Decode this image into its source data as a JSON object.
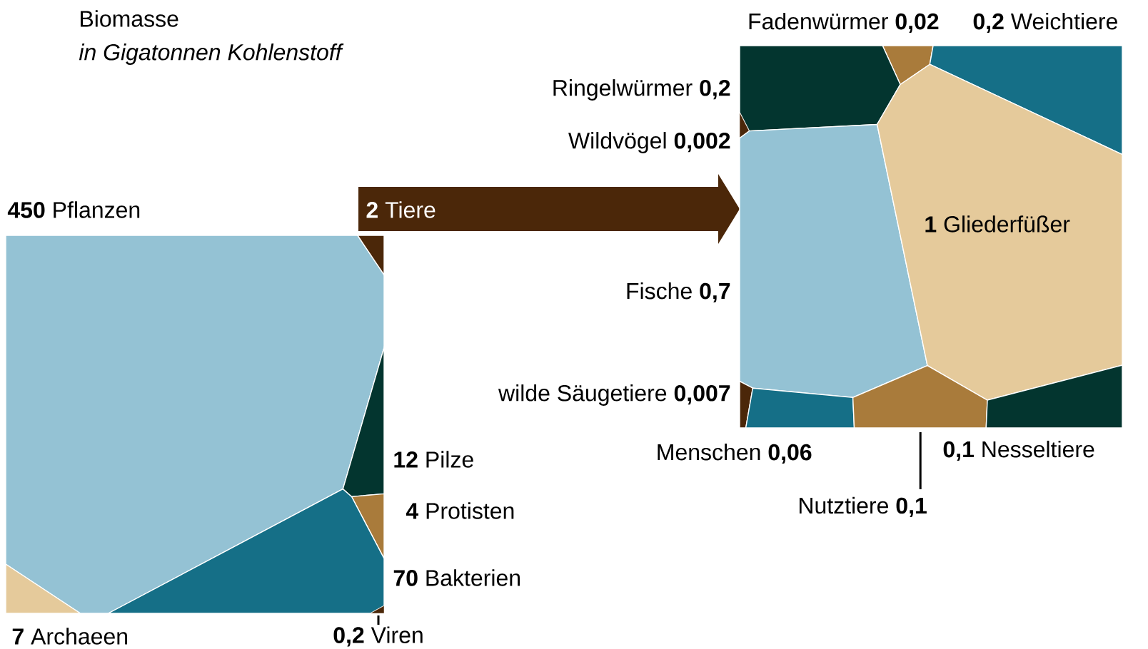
{
  "chart_data": [
    {
      "type": "other",
      "title": "Biomasse",
      "subtitle": "in Gigatonnen Kohlenstoff",
      "categories": [
        "Pflanzen",
        "Tiere",
        "Pilze",
        "Protisten",
        "Bakterien",
        "Archaeen",
        "Viren"
      ],
      "values": [
        450,
        2,
        12,
        4,
        70,
        7,
        0.2
      ],
      "value_labels": [
        "450",
        "2",
        "12",
        "4",
        "70",
        "7",
        "0,2"
      ],
      "colors": [
        "#94c2d4",
        "#4b2709",
        "#03352f",
        "#a97b3b",
        "#156f87",
        "#e5ca9b",
        "#4b2709"
      ]
    },
    {
      "type": "other",
      "categories": [
        "Fadenwürmer",
        "Weichtiere",
        "Ringelwürmer",
        "Wildvögel",
        "Fische",
        "Gliederfüßer",
        "wilde Säugetiere",
        "Menschen",
        "Nutztiere",
        "Nesseltiere"
      ],
      "values": [
        0.02,
        0.2,
        0.2,
        0.002,
        0.7,
        1,
        0.007,
        0.06,
        0.1,
        0.1
      ],
      "value_labels": [
        "0,02",
        "0,2",
        "0,2",
        "0,002",
        "0,7",
        "1",
        "0,007",
        "0,06",
        "0,1",
        "0,1"
      ],
      "colors": [
        "#a97b3b",
        "#156f87",
        "#03352f",
        "#4b2709",
        "#94c2d4",
        "#e5ca9b",
        "#4b2709",
        "#156f87",
        "#a97b3b",
        "#03352f"
      ]
    }
  ]
}
